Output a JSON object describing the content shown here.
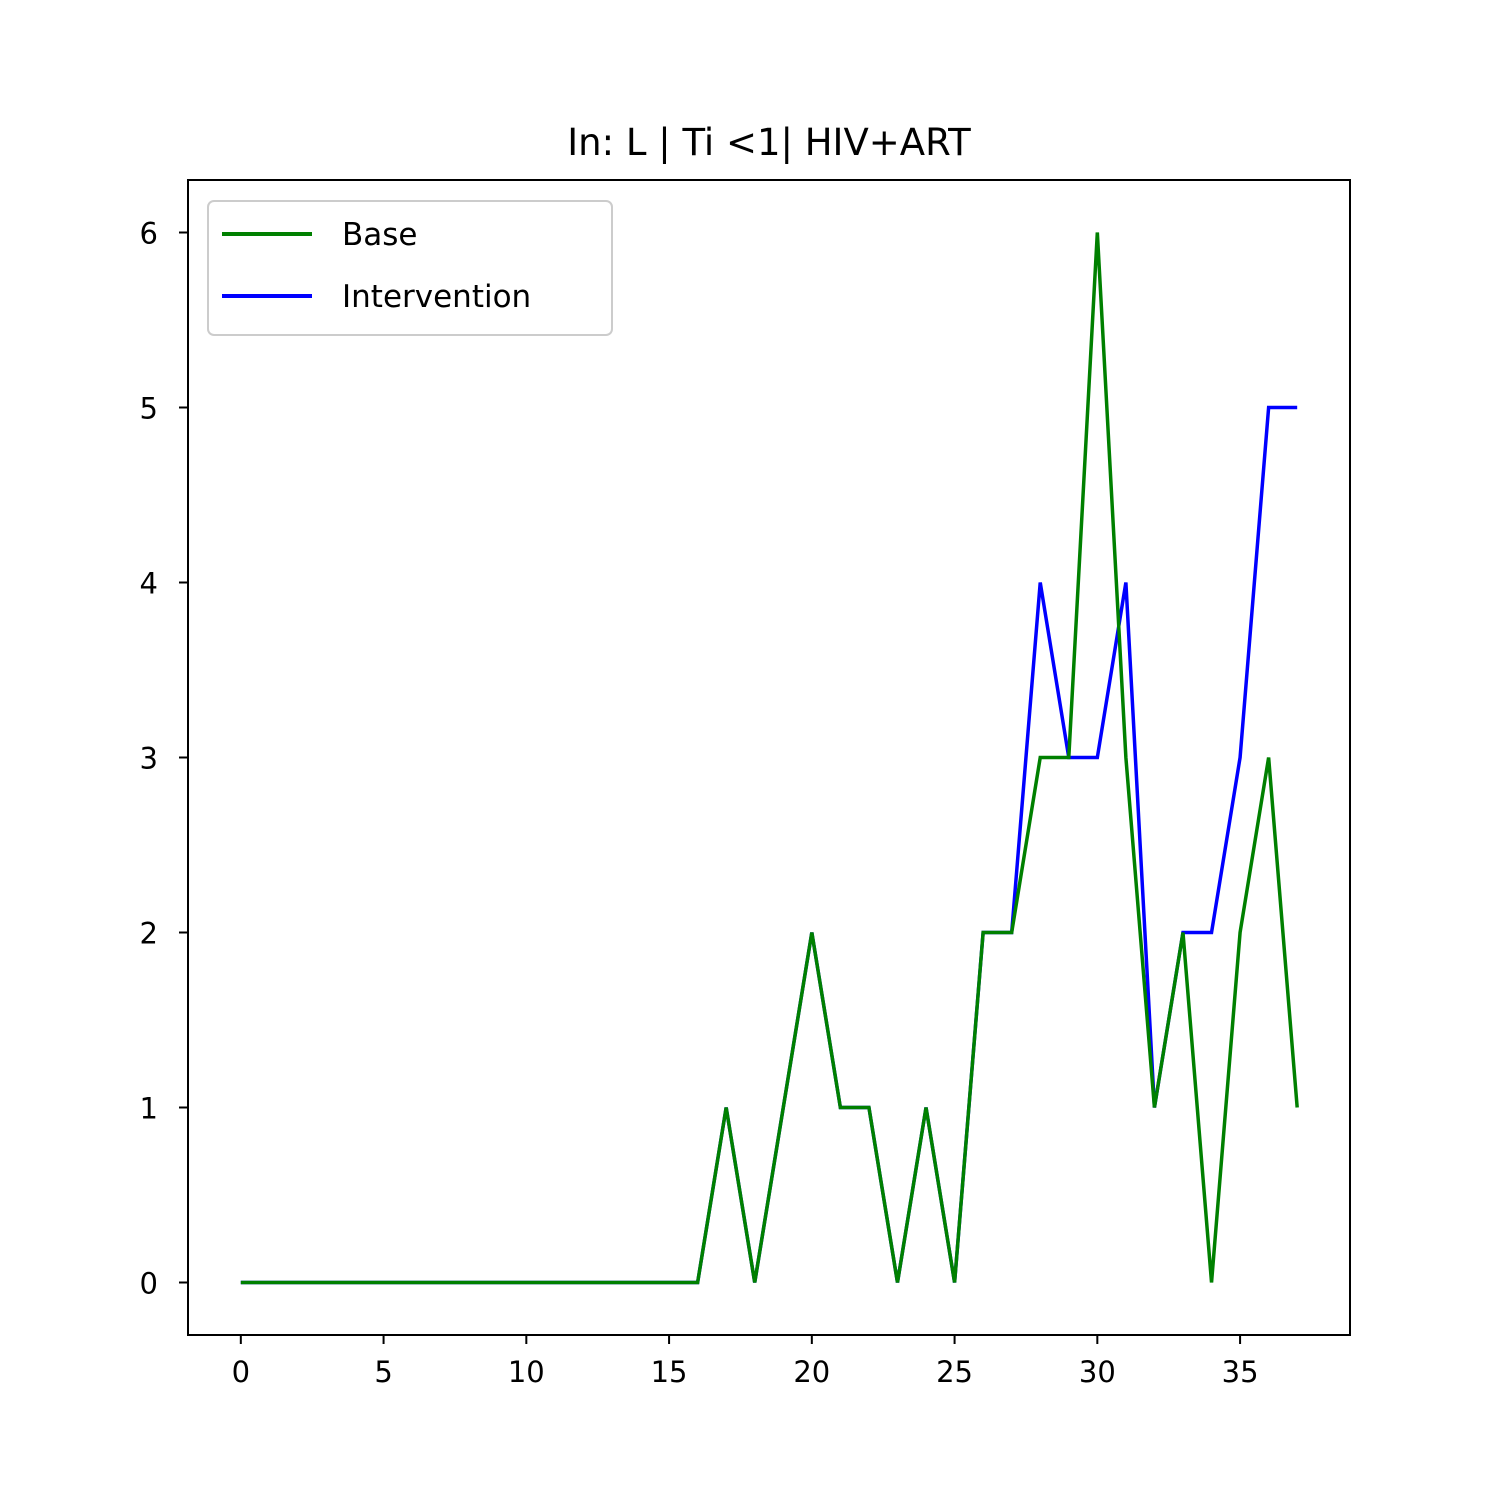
{
  "chart_data": {
    "type": "line",
    "title": "In: L | Ti <1| HIV+ART",
    "xlabel": "",
    "ylabel": "",
    "xlim": [
      -1.85,
      38.85
    ],
    "ylim": [
      -0.3,
      6.3
    ],
    "xticks": [
      0,
      5,
      10,
      15,
      20,
      25,
      30,
      35
    ],
    "yticks": [
      0,
      1,
      2,
      3,
      4,
      5,
      6
    ],
    "grid": false,
    "legend": "upper-left",
    "x": [
      0,
      1,
      2,
      3,
      4,
      5,
      6,
      7,
      8,
      9,
      10,
      11,
      12,
      13,
      14,
      15,
      16,
      17,
      18,
      19,
      20,
      21,
      22,
      23,
      24,
      25,
      26,
      27,
      28,
      29,
      30,
      31,
      32,
      33,
      34,
      35,
      36,
      37
    ],
    "series": [
      {
        "name": "Intervention",
        "color": "#0000ff",
        "values": [
          0,
          0,
          0,
          0,
          0,
          0,
          0,
          0,
          0,
          0,
          0,
          0,
          0,
          0,
          0,
          0,
          0,
          1,
          0,
          1,
          2,
          1,
          1,
          0,
          1,
          0,
          2,
          2,
          4,
          3,
          3,
          4,
          1,
          2,
          2,
          3,
          5,
          5
        ]
      },
      {
        "name": "Base",
        "color": "#008000",
        "values": [
          0,
          0,
          0,
          0,
          0,
          0,
          0,
          0,
          0,
          0,
          0,
          0,
          0,
          0,
          0,
          0,
          0,
          1,
          0,
          1,
          2,
          1,
          1,
          0,
          1,
          0,
          2,
          2,
          3,
          3,
          6,
          3,
          1,
          2,
          0,
          2,
          3,
          1
        ]
      }
    ],
    "legend_order": [
      "Base",
      "Intervention"
    ]
  }
}
